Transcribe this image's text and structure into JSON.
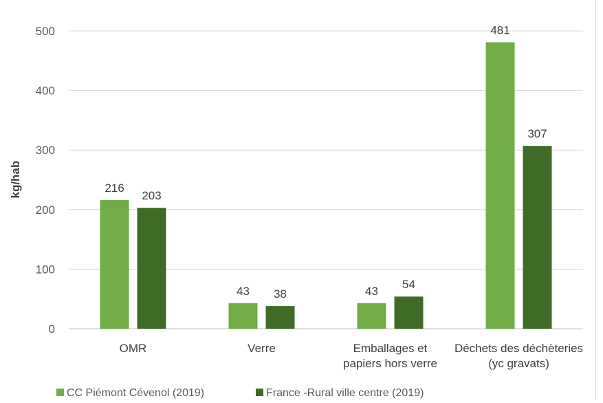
{
  "chart_data": {
    "type": "bar",
    "ylabel": "kg/hab",
    "xlabel": "",
    "ylim": [
      0,
      500
    ],
    "yticks": [
      0,
      100,
      200,
      300,
      400,
      500
    ],
    "grid": true,
    "legend": "bottom-left",
    "categories": [
      [
        "OMR"
      ],
      [
        "Verre"
      ],
      [
        "Emballages et",
        "papiers hors verre"
      ],
      [
        "Déchets des déchèteries",
        "(yc gravats)"
      ]
    ],
    "series": [
      {
        "name": "CC Piémont Cévenol (2019)",
        "color": "#70ad47",
        "values": [
          216,
          43,
          43,
          481
        ]
      },
      {
        "name": "France -Rural ville centre  (2019)",
        "color": "#3f6b27",
        "values": [
          203,
          38,
          54,
          307
        ]
      }
    ]
  }
}
